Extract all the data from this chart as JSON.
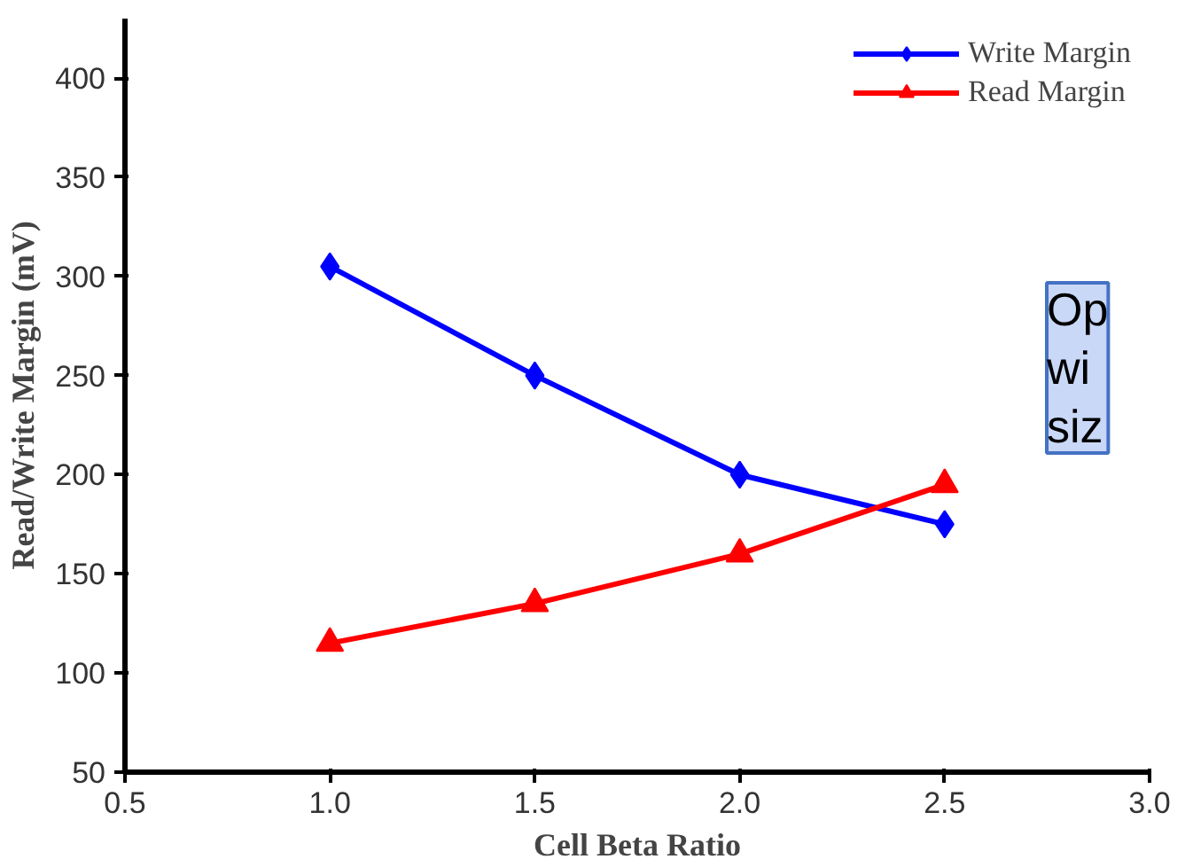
{
  "chart_data": {
    "type": "line",
    "xlabel": "Cell Beta Ratio",
    "ylabel": "Read/Write Margin (mV)",
    "x": [
      1.0,
      1.5,
      2.0,
      2.5
    ],
    "series": [
      {
        "name": "Write Margin",
        "color": "#0000ff",
        "marker": "diamond",
        "values": [
          305,
          250,
          200,
          175
        ]
      },
      {
        "name": "Read Margin",
        "color": "#ff0000",
        "marker": "triangle",
        "values": [
          115,
          135,
          160,
          195
        ]
      }
    ],
    "xlim": [
      0.5,
      3.0
    ],
    "xticks": [
      {
        "value": 0.5,
        "label": "0.5"
      },
      {
        "value": 1.0,
        "label": "1.0"
      },
      {
        "value": 1.5,
        "label": "1.5"
      },
      {
        "value": 2.0,
        "label": "2.0"
      },
      {
        "value": 2.5,
        "label": "2.5"
      },
      {
        "value": 3.0,
        "label": "3.0"
      }
    ],
    "ylim": [
      50,
      430
    ],
    "yticks": [
      50,
      100,
      150,
      200,
      250,
      300,
      350,
      400
    ],
    "grid": false,
    "legend": "top right",
    "line_style": "solid",
    "annotations": [
      "Op\nwi\nsiz"
    ]
  }
}
